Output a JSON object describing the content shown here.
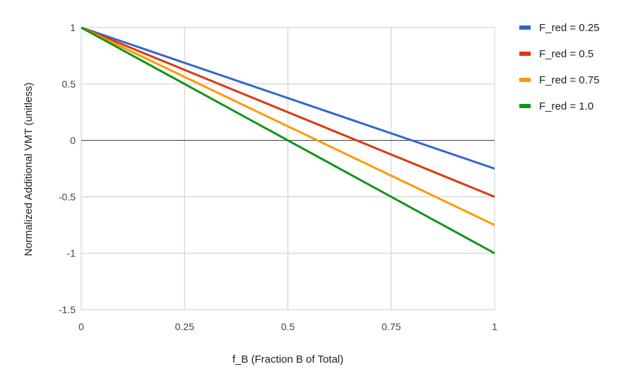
{
  "chart_data": {
    "type": "line",
    "xlabel": "f_B (Fraction B of Total)",
    "ylabel": "Normalized Additional VMT (unitless)",
    "xlim": [
      0,
      1
    ],
    "ylim": [
      -1.5,
      1
    ],
    "x_ticks": [
      {
        "value": 0,
        "label": "0"
      },
      {
        "value": 0.25,
        "label": "0.25"
      },
      {
        "value": 0.5,
        "label": "0.5"
      },
      {
        "value": 0.75,
        "label": "0.75"
      },
      {
        "value": 1,
        "label": "1"
      }
    ],
    "y_ticks": [
      {
        "value": 1,
        "label": "1"
      },
      {
        "value": 0.5,
        "label": "0.5"
      },
      {
        "value": 0,
        "label": "0"
      },
      {
        "value": -0.5,
        "label": "-0.5"
      },
      {
        "value": -1,
        "label": "-1"
      },
      {
        "value": -1.5,
        "label": "-1.5"
      }
    ],
    "grid": true,
    "legend_position": "right",
    "series": [
      {
        "name": "F_red = 0.25",
        "color": "#3366cc",
        "x": [
          0,
          1
        ],
        "y": [
          1,
          -0.25
        ]
      },
      {
        "name": "F_red = 0.5",
        "color": "#dc3912",
        "x": [
          0,
          1
        ],
        "y": [
          1,
          -0.5
        ]
      },
      {
        "name": "F_red = 0.75",
        "color": "#ff9900",
        "x": [
          0,
          1
        ],
        "y": [
          1,
          -0.75
        ]
      },
      {
        "name": "F_red = 1.0",
        "color": "#109618",
        "x": [
          0,
          1
        ],
        "y": [
          1,
          -1
        ]
      }
    ]
  }
}
